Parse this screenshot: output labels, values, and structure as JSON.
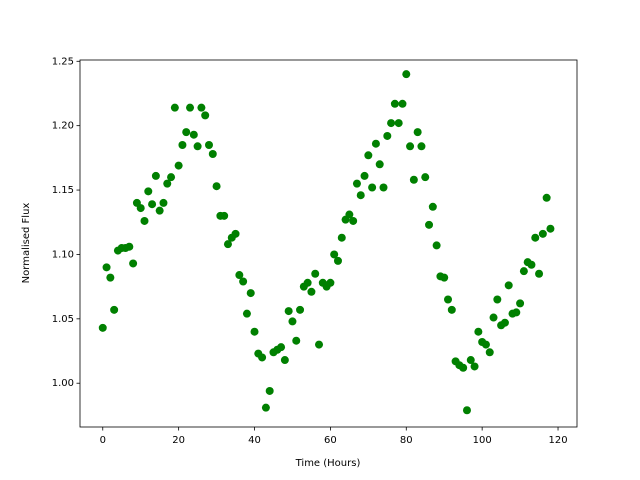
{
  "chart_data": {
    "type": "scatter",
    "xlabel": "Time (Hours)",
    "ylabel": "Normalised Flux",
    "color": "#008000",
    "x": [
      0,
      1,
      2,
      3,
      4,
      5,
      6,
      7,
      8,
      9,
      10,
      11,
      12,
      13,
      14,
      15,
      16,
      17,
      18,
      19,
      20,
      21,
      22,
      23,
      24,
      25,
      26,
      27,
      28,
      29,
      30,
      31,
      32,
      33,
      34,
      35,
      36,
      37,
      38,
      39,
      40,
      41,
      42,
      43,
      44,
      45,
      46,
      47,
      48,
      49,
      50,
      51,
      52,
      53,
      54,
      55,
      56,
      57,
      58,
      59,
      60,
      61,
      62,
      63,
      64,
      65,
      66,
      67,
      68,
      69,
      70,
      71,
      72,
      73,
      74,
      75,
      76,
      77,
      78,
      79,
      80,
      81,
      82,
      83,
      84,
      85,
      86,
      87,
      88,
      89,
      90,
      91,
      92,
      93,
      94,
      95,
      96,
      97,
      98,
      99,
      100,
      101,
      102,
      103,
      104,
      105,
      106,
      107,
      108,
      109,
      110,
      111,
      112,
      113,
      114,
      115,
      116,
      117,
      118
    ],
    "values": [
      1.043,
      1.09,
      1.082,
      1.057,
      1.103,
      1.105,
      1.105,
      1.106,
      1.093,
      1.14,
      1.136,
      1.126,
      1.149,
      1.139,
      1.161,
      1.134,
      1.14,
      1.155,
      1.16,
      1.214,
      1.169,
      1.185,
      1.195,
      1.214,
      1.193,
      1.184,
      1.214,
      1.208,
      1.185,
      1.178,
      1.153,
      1.13,
      1.13,
      1.108,
      1.113,
      1.116,
      1.084,
      1.079,
      1.054,
      1.07,
      1.04,
      1.023,
      1.02,
      0.981,
      0.994,
      1.024,
      1.026,
      1.028,
      1.018,
      1.056,
      1.048,
      1.033,
      1.057,
      1.075,
      1.078,
      1.071,
      1.085,
      1.03,
      1.078,
      1.075,
      1.078,
      1.1,
      1.095,
      1.113,
      1.127,
      1.131,
      1.126,
      1.155,
      1.146,
      1.161,
      1.177,
      1.152,
      1.186,
      1.17,
      1.152,
      1.192,
      1.202,
      1.217,
      1.202,
      1.217,
      1.24,
      1.184,
      1.158,
      1.195,
      1.184,
      1.16,
      1.123,
      1.137,
      1.107,
      1.083,
      1.082,
      1.065,
      1.057,
      1.017,
      1.014,
      1.012,
      0.979,
      1.018,
      1.013,
      1.04,
      1.032,
      1.03,
      1.024,
      1.051,
      1.065,
      1.045,
      1.047,
      1.076,
      1.054,
      1.055,
      1.062,
      1.087,
      1.094,
      1.092,
      1.113,
      1.085,
      1.116,
      1.144,
      1.12
    ],
    "xlim": [
      -6,
      125
    ],
    "ylim": [
      0.966,
      1.251
    ],
    "xticks": [
      0,
      20,
      40,
      60,
      80,
      100,
      120
    ],
    "yticks": [
      {
        "value": 1.0,
        "label": "1.00"
      },
      1.05,
      {
        "value": 1.1,
        "label": "1.10"
      },
      1.15,
      {
        "value": 1.2,
        "label": "1.20"
      },
      1.25
    ]
  }
}
